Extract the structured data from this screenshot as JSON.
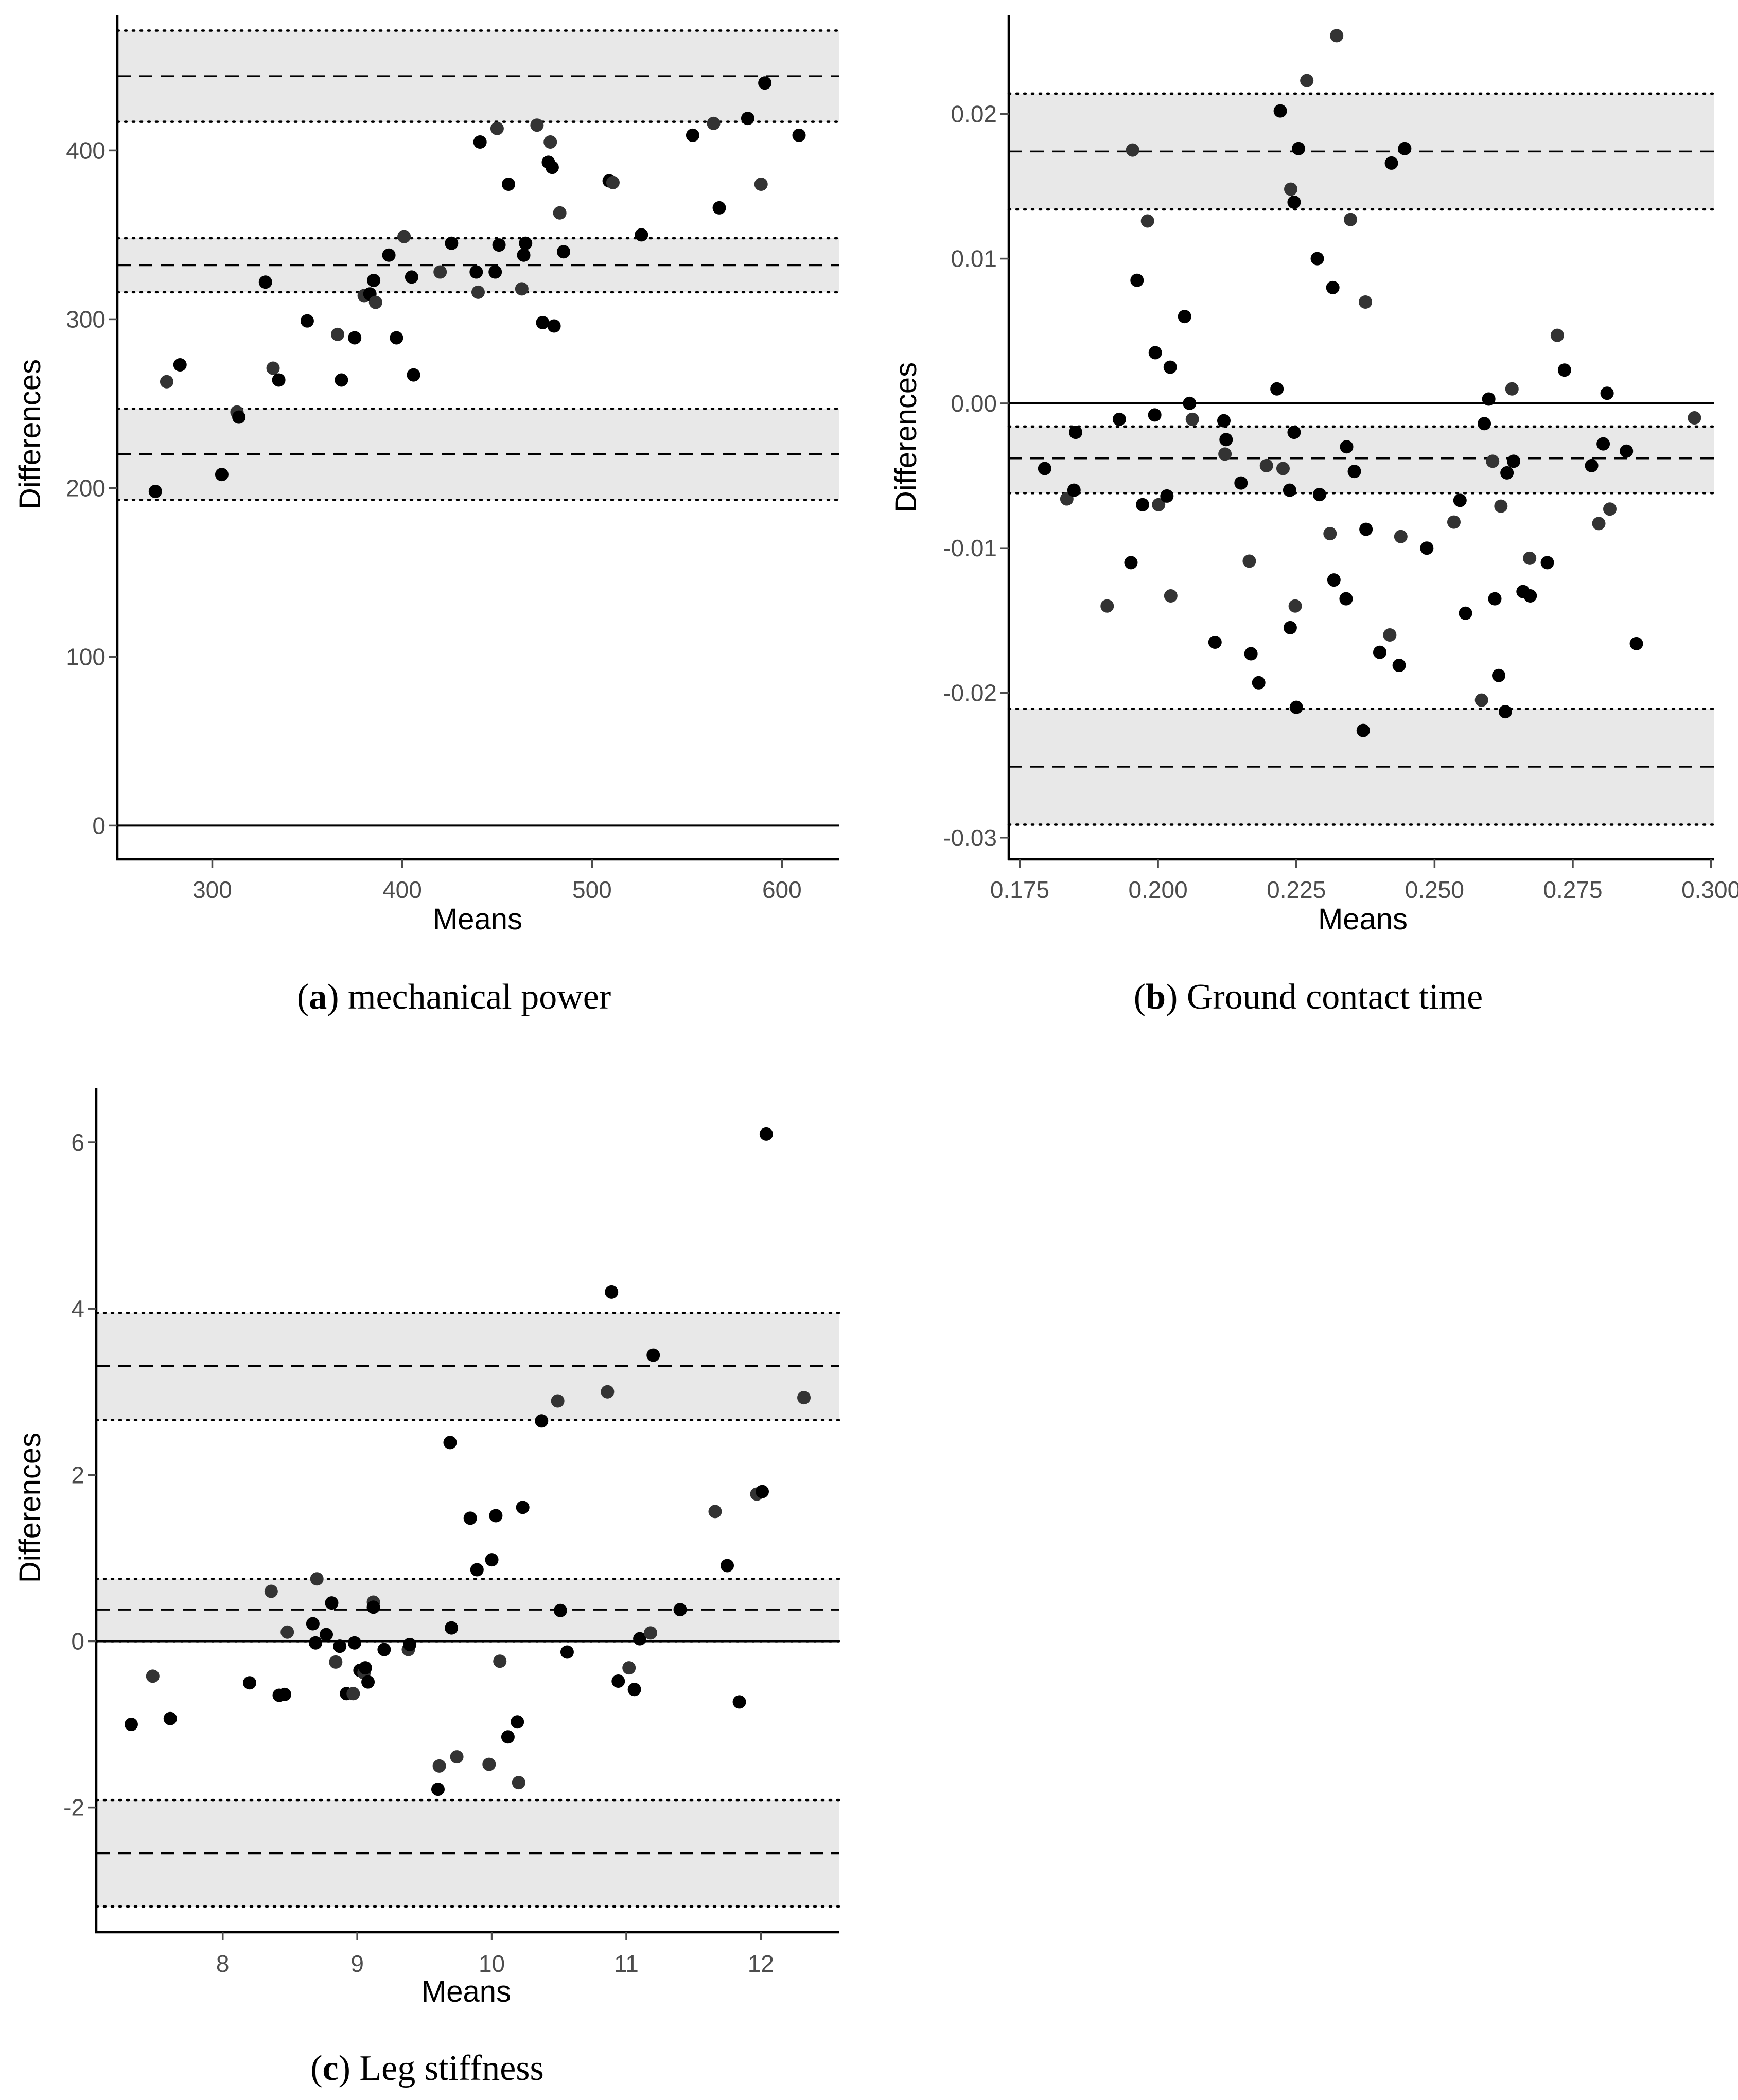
{
  "colors": {
    "band": "#e8e8e8",
    "point_dark": "#000000",
    "point_gray": "#333333",
    "line": "#000000",
    "text_tick": "#4d4d4d"
  },
  "chart_data": [
    {
      "id": "a",
      "type": "scatter",
      "title": "",
      "xlabel": "Means",
      "ylabel": "Differences",
      "caption_letter": "a",
      "caption_text": "mechanical power",
      "xlim": [
        250,
        630
      ],
      "ylim": [
        -20,
        480
      ],
      "xticks": [
        300,
        400,
        500,
        600
      ],
      "xtick_labels": [
        "300",
        "400",
        "500",
        "600"
      ],
      "yticks": [
        0,
        100,
        200,
        300,
        400
      ],
      "ytick_labels": [
        "0",
        "100",
        "200",
        "300",
        "400"
      ],
      "zero_line": 0,
      "agreement_groups": [
        {
          "mean": 444,
          "lower": 417,
          "upper": 471
        },
        {
          "mean": 332,
          "lower": 316,
          "upper": 348
        },
        {
          "mean": 220,
          "lower": 193,
          "upper": 247
        }
      ],
      "points": [
        [
          270,
          198
        ],
        [
          276,
          263
        ],
        [
          283,
          273
        ],
        [
          305,
          208
        ],
        [
          313,
          245
        ],
        [
          314,
          242
        ],
        [
          328,
          322
        ],
        [
          332,
          271
        ],
        [
          335,
          264
        ],
        [
          350,
          299
        ],
        [
          366,
          291
        ],
        [
          368,
          264
        ],
        [
          375,
          289
        ],
        [
          380,
          314
        ],
        [
          383,
          315
        ],
        [
          385,
          323
        ],
        [
          386,
          310
        ],
        [
          393,
          338
        ],
        [
          397,
          289
        ],
        [
          401,
          349
        ],
        [
          405,
          325
        ],
        [
          406,
          267
        ],
        [
          420,
          328
        ],
        [
          426,
          345
        ],
        [
          439,
          328
        ],
        [
          440,
          316
        ],
        [
          441,
          405
        ],
        [
          449,
          328
        ],
        [
          450,
          413
        ],
        [
          451,
          344
        ],
        [
          456,
          380
        ],
        [
          463,
          318
        ],
        [
          464,
          338
        ],
        [
          465,
          345
        ],
        [
          471,
          415
        ],
        [
          474,
          298
        ],
        [
          477,
          393
        ],
        [
          478,
          405
        ],
        [
          479,
          390
        ],
        [
          480,
          296
        ],
        [
          483,
          363
        ],
        [
          485,
          340
        ],
        [
          509,
          382
        ],
        [
          511,
          381
        ],
        [
          526,
          350
        ],
        [
          553,
          409
        ],
        [
          564,
          416
        ],
        [
          567,
          366
        ],
        [
          582,
          419
        ],
        [
          589,
          380
        ],
        [
          591,
          440
        ],
        [
          609,
          409
        ]
      ]
    },
    {
      "id": "b",
      "type": "scatter",
      "title": "",
      "xlabel": "Means",
      "ylabel": "Differences",
      "caption_letter": "b",
      "caption_text": "Ground contact time",
      "xlim": [
        0.173,
        0.3005
      ],
      "ylim": [
        -0.0315,
        0.0268
      ],
      "xticks": [
        0.175,
        0.2,
        0.225,
        0.25,
        0.275,
        0.3
      ],
      "xtick_labels": [
        "0.175",
        "0.200",
        "0.225",
        "0.250",
        "0.275",
        "0.300"
      ],
      "yticks": [
        -0.03,
        -0.02,
        -0.01,
        0.0,
        0.01,
        0.02
      ],
      "ytick_labels": [
        "-0.03",
        "-0.02",
        "-0.01",
        "0.00",
        "0.01",
        "0.02"
      ],
      "zero_line": 0,
      "agreement_groups": [
        {
          "mean": 0.0174,
          "lower": 0.0134,
          "upper": 0.0214
        },
        {
          "mean": -0.0038,
          "lower": -0.0062,
          "upper": -0.0016
        },
        {
          "mean": -0.0251,
          "lower": -0.0291,
          "upper": -0.0211
        }
      ],
      "points": [
        [
          0.1795,
          -0.0045
        ],
        [
          0.1835,
          -0.0066
        ],
        [
          0.1848,
          -0.006
        ],
        [
          0.1851,
          -0.002
        ],
        [
          0.1908,
          -0.014
        ],
        [
          0.193,
          -0.0011
        ],
        [
          0.1951,
          -0.011
        ],
        [
          0.1954,
          0.0175
        ],
        [
          0.1962,
          0.0085
        ],
        [
          0.1972,
          -0.007
        ],
        [
          0.1981,
          0.0126
        ],
        [
          0.1994,
          -0.0008
        ],
        [
          0.1995,
          0.0035
        ],
        [
          0.2001,
          -0.007
        ],
        [
          0.2016,
          -0.0064
        ],
        [
          0.2022,
          0.0025
        ],
        [
          0.2023,
          -0.0133
        ],
        [
          0.2048,
          0.006
        ],
        [
          0.2057,
          0.0
        ],
        [
          0.2062,
          -0.0011
        ],
        [
          0.2103,
          -0.0165
        ],
        [
          0.2119,
          -0.0012
        ],
        [
          0.2121,
          -0.0035
        ],
        [
          0.2123,
          -0.0025
        ],
        [
          0.215,
          -0.0055
        ],
        [
          0.2165,
          -0.0109
        ],
        [
          0.2168,
          -0.0173
        ],
        [
          0.2182,
          -0.0193
        ],
        [
          0.2196,
          -0.0043
        ],
        [
          0.2215,
          0.001
        ],
        [
          0.2221,
          0.0202
        ],
        [
          0.2226,
          -0.0045
        ],
        [
          0.2238,
          -0.006
        ],
        [
          0.2239,
          -0.0155
        ],
        [
          0.224,
          0.0148
        ],
        [
          0.2246,
          0.0139
        ],
        [
          0.2246,
          -0.002
        ],
        [
          0.2248,
          -0.014
        ],
        [
          0.225,
          -0.021
        ],
        [
          0.2254,
          0.0176
        ],
        [
          0.2269,
          0.0223
        ],
        [
          0.2288,
          0.01
        ],
        [
          0.2292,
          -0.0063
        ],
        [
          0.2311,
          -0.009
        ],
        [
          0.2316,
          0.008
        ],
        [
          0.2318,
          -0.0122
        ],
        [
          0.2323,
          0.0254
        ],
        [
          0.234,
          -0.0135
        ],
        [
          0.2341,
          -0.003
        ],
        [
          0.2348,
          0.0127
        ],
        [
          0.2355,
          -0.0047
        ],
        [
          0.2371,
          -0.0226
        ],
        [
          0.2375,
          0.007
        ],
        [
          0.2376,
          -0.0087
        ],
        [
          0.2401,
          -0.0172
        ],
        [
          0.2419,
          -0.016
        ],
        [
          0.2422,
          0.0166
        ],
        [
          0.2436,
          -0.0181
        ],
        [
          0.2439,
          -0.0092
        ],
        [
          0.2446,
          0.0176
        ],
        [
          0.2486,
          -0.01
        ],
        [
          0.2535,
          -0.0082
        ],
        [
          0.2546,
          -0.0067
        ],
        [
          0.2556,
          -0.0145
        ],
        [
          0.2585,
          -0.0205
        ],
        [
          0.259,
          -0.0014
        ],
        [
          0.2598,
          0.0003
        ],
        [
          0.2605,
          -0.004
        ],
        [
          0.2609,
          -0.0135
        ],
        [
          0.2616,
          -0.0188
        ],
        [
          0.262,
          -0.0071
        ],
        [
          0.2628,
          -0.0213
        ],
        [
          0.2631,
          -0.0048
        ],
        [
          0.264,
          0.001
        ],
        [
          0.2643,
          -0.004
        ],
        [
          0.266,
          -0.013
        ],
        [
          0.2672,
          -0.0107
        ],
        [
          0.2673,
          -0.0133
        ],
        [
          0.2704,
          -0.011
        ],
        [
          0.2722,
          0.0047
        ],
        [
          0.2735,
          0.0023
        ],
        [
          0.2784,
          -0.0043
        ],
        [
          0.2797,
          -0.0083
        ],
        [
          0.2805,
          -0.0028
        ],
        [
          0.2812,
          0.0007
        ],
        [
          0.2817,
          -0.0073
        ],
        [
          0.2847,
          -0.0033
        ],
        [
          0.2865,
          -0.0166
        ],
        [
          0.297,
          -0.001
        ]
      ]
    },
    {
      "id": "c",
      "type": "scatter",
      "title": "",
      "xlabel": "Means",
      "ylabel": "Differences",
      "caption_letter": "c",
      "caption_text": "Leg stiffness",
      "xlim": [
        7.06,
        12.58
      ],
      "ylim": [
        -3.5,
        6.65
      ],
      "xticks": [
        8,
        9,
        10,
        11,
        12
      ],
      "xtick_labels": [
        "8",
        "9",
        "10",
        "11",
        "12"
      ],
      "yticks": [
        -2,
        0,
        2,
        4,
        6
      ],
      "ytick_labels": [
        "-2",
        "0",
        "2",
        "4",
        "6"
      ],
      "zero_line": 0,
      "agreement_groups": [
        {
          "mean": 3.31,
          "lower": 2.66,
          "upper": 3.95
        },
        {
          "mean": 0.38,
          "lower": 0.0,
          "upper": 0.75
        },
        {
          "mean": -2.55,
          "lower": -3.19,
          "upper": -1.91
        }
      ],
      "points": [
        [
          7.32,
          -1.0
        ],
        [
          7.48,
          -0.42
        ],
        [
          7.61,
          -0.93
        ],
        [
          8.2,
          -0.5
        ],
        [
          8.36,
          0.6
        ],
        [
          8.42,
          -0.65
        ],
        [
          8.46,
          -0.64
        ],
        [
          8.48,
          0.11
        ],
        [
          8.67,
          0.21
        ],
        [
          8.69,
          -0.02
        ],
        [
          8.7,
          0.75
        ],
        [
          8.77,
          0.08
        ],
        [
          8.81,
          0.46
        ],
        [
          8.84,
          -0.25
        ],
        [
          8.87,
          -0.06
        ],
        [
          8.92,
          -0.63
        ],
        [
          8.97,
          -0.63
        ],
        [
          8.98,
          -0.02
        ],
        [
          9.02,
          -0.35
        ],
        [
          9.05,
          -0.38
        ],
        [
          9.06,
          -0.32
        ],
        [
          9.08,
          -0.49
        ],
        [
          9.12,
          0.47
        ],
        [
          9.12,
          0.41
        ],
        [
          9.2,
          -0.1
        ],
        [
          9.38,
          -0.1
        ],
        [
          9.39,
          -0.04
        ],
        [
          9.6,
          -1.78
        ],
        [
          9.61,
          -1.5
        ],
        [
          9.69,
          2.39
        ],
        [
          9.7,
          0.16
        ],
        [
          9.74,
          -1.39
        ],
        [
          9.84,
          1.48
        ],
        [
          9.89,
          0.86
        ],
        [
          9.98,
          -1.48
        ],
        [
          10.0,
          0.98
        ],
        [
          10.03,
          1.51
        ],
        [
          10.06,
          -0.24
        ],
        [
          10.12,
          -1.15
        ],
        [
          10.19,
          -0.97
        ],
        [
          10.2,
          -1.7
        ],
        [
          10.23,
          1.61
        ],
        [
          10.37,
          2.65
        ],
        [
          10.49,
          2.89
        ],
        [
          10.51,
          0.37
        ],
        [
          10.56,
          -0.13
        ],
        [
          10.86,
          3.0
        ],
        [
          10.89,
          4.2
        ],
        [
          10.94,
          -0.48
        ],
        [
          11.02,
          -0.32
        ],
        [
          11.06,
          -0.58
        ],
        [
          11.1,
          0.03
        ],
        [
          11.18,
          0.1
        ],
        [
          11.2,
          3.44
        ],
        [
          11.4,
          0.38
        ],
        [
          11.66,
          1.56
        ],
        [
          11.75,
          0.91
        ],
        [
          11.84,
          -0.73
        ],
        [
          11.97,
          1.77
        ],
        [
          12.01,
          1.8
        ],
        [
          12.04,
          6.1
        ],
        [
          12.32,
          2.93
        ]
      ]
    }
  ]
}
